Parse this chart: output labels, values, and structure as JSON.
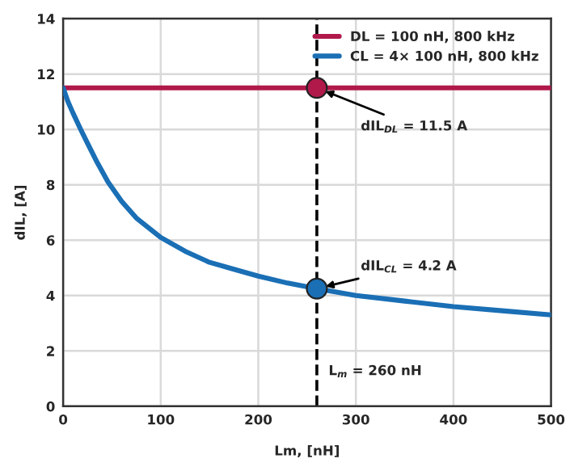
{
  "chart_data": {
    "type": "line",
    "xlabel": "Lm, [nH]",
    "ylabel": "dIL, [A]",
    "xlim": [
      0,
      500
    ],
    "ylim": [
      0,
      14
    ],
    "xticks": [
      0,
      100,
      200,
      300,
      400,
      500
    ],
    "yticks": [
      0,
      2,
      4,
      6,
      8,
      10,
      12,
      14
    ],
    "grid": true,
    "legend": "top right",
    "line_style": "solid",
    "series": [
      {
        "name": "DL = 100 nH, 800 kHz",
        "color": "#b0194a",
        "x": [
          0,
          500
        ],
        "values": [
          11.5,
          11.5
        ]
      },
      {
        "name": "CL = 4× 100 nH, 800 kHz",
        "color": "#1a6fb5",
        "x": [
          0,
          5,
          10,
          18,
          25,
          35,
          46,
          60,
          75,
          100,
          125,
          150,
          175,
          200,
          230,
          260,
          300,
          350,
          400,
          450,
          500
        ],
        "values": [
          11.5,
          11.0,
          10.6,
          10.0,
          9.5,
          8.8,
          8.1,
          7.4,
          6.8,
          6.1,
          5.6,
          5.2,
          4.95,
          4.7,
          4.45,
          4.25,
          4.0,
          3.8,
          3.6,
          3.45,
          3.3
        ]
      },
      {
        "type": "scatter",
        "marker": "circle",
        "color": "#b0194a",
        "x": [
          260
        ],
        "values": [
          11.5
        ]
      },
      {
        "type": "scatter",
        "marker": "circle",
        "color": "#1a6fb5",
        "x": [
          260
        ],
        "values": [
          4.25
        ]
      }
    ],
    "ref_lines": [
      {
        "axis": "x",
        "value": 260,
        "label": "L$_{m}$ = 260 nH",
        "line_style": "dashed",
        "color": "#000000"
      }
    ],
    "annotations": [
      {
        "text": "dIL$_{DL}$ = 11.5 A",
        "x": 260,
        "y": 11.5
      },
      {
        "text": "dIL$_{CL}$ = 4.2 A",
        "x": 260,
        "y": 4.25
      }
    ]
  }
}
